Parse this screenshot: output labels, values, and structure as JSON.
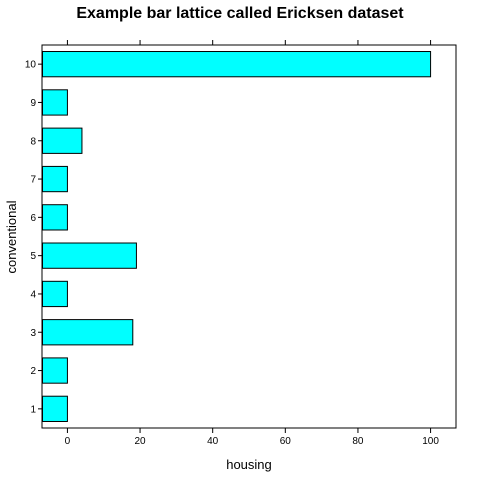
{
  "chart_data": {
    "type": "bar",
    "orientation": "horizontal",
    "title": "Example bar lattice called Ericksen dataset",
    "xlabel": "housing",
    "ylabel": "conventional",
    "categories": [
      "1",
      "2",
      "3",
      "4",
      "5",
      "6",
      "7",
      "8",
      "9",
      "10"
    ],
    "values": [
      0,
      0,
      18,
      0,
      19,
      0,
      0,
      4,
      0,
      100
    ],
    "xlim": [
      -7,
      107
    ],
    "x_ticks": [
      "0",
      "20",
      "40",
      "60",
      "80",
      "100"
    ],
    "x_tick_values": [
      0,
      20,
      40,
      60,
      80,
      100
    ],
    "bar_fill": "#00ffff",
    "bar_stroke": "#000000",
    "grid": false
  }
}
